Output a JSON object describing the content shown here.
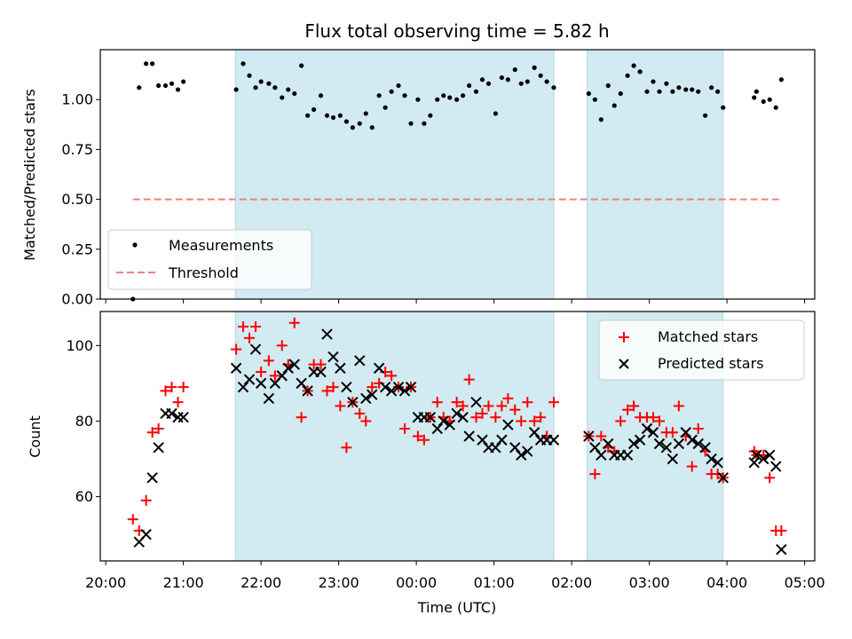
{
  "chart_data": {
    "title": "Flux total observing time = 5.82 h",
    "xlabel": "Time (UTC)",
    "x_ticks": [
      "20:00",
      "21:00",
      "22:00",
      "23:00",
      "00:00",
      "01:00",
      "02:00",
      "03:00",
      "04:00",
      "05:00"
    ],
    "x_range_hours": [
      19.93,
      29.13
    ],
    "shaded_spans_hours": [
      [
        21.67,
        25.77
      ],
      [
        26.2,
        27.95
      ]
    ],
    "shade_color": "#add8e6",
    "panels": [
      {
        "type": "scatter",
        "ylabel": "Matched/Predicted stars",
        "ylim": [
          0,
          1.25
        ],
        "yticks": [
          0,
          0.25,
          0.5,
          0.75,
          1.0
        ],
        "ytick_labels": [
          "0.00",
          "0.25",
          "0.50",
          "0.75",
          "1.00"
        ],
        "legend": "lower-left",
        "series": [
          {
            "name": "Measurements",
            "marker": "dot",
            "color": "#000000",
            "x": [
              20.35,
              20.43,
              20.52,
              20.6,
              20.68,
              20.77,
              20.85,
              20.93,
              21.0,
              21.68,
              21.77,
              21.85,
              21.93,
              22.0,
              22.1,
              22.18,
              22.27,
              22.35,
              22.43,
              22.52,
              22.6,
              22.68,
              22.77,
              22.85,
              22.93,
              23.02,
              23.1,
              23.18,
              23.27,
              23.35,
              23.43,
              23.52,
              23.6,
              23.68,
              23.77,
              23.85,
              23.93,
              24.02,
              24.1,
              24.18,
              24.27,
              24.35,
              24.43,
              24.52,
              24.6,
              24.68,
              24.77,
              24.85,
              24.93,
              25.02,
              25.1,
              25.18,
              25.27,
              25.35,
              25.43,
              25.52,
              25.6,
              25.68,
              25.77,
              26.22,
              26.3,
              26.38,
              26.47,
              26.55,
              26.63,
              26.72,
              26.8,
              26.88,
              26.97,
              27.05,
              27.13,
              27.22,
              27.3,
              27.38,
              27.47,
              27.55,
              27.63,
              27.72,
              27.8,
              27.88,
              27.95,
              28.35,
              28.38,
              28.47,
              28.55,
              28.63,
              28.7
            ],
            "y": [
              0.0,
              1.06,
              1.18,
              1.18,
              1.07,
              1.07,
              1.08,
              1.05,
              1.09,
              1.05,
              1.18,
              1.12,
              1.06,
              1.09,
              1.08,
              1.06,
              1.01,
              1.05,
              1.03,
              1.17,
              0.92,
              0.95,
              1.02,
              0.92,
              0.91,
              0.92,
              0.89,
              0.86,
              0.88,
              0.93,
              0.86,
              1.02,
              0.96,
              1.04,
              1.07,
              1.02,
              0.88,
              1.0,
              0.88,
              0.92,
              1.0,
              1.02,
              1.01,
              1.0,
              1.02,
              1.07,
              1.04,
              1.1,
              1.08,
              0.93,
              1.11,
              1.1,
              1.15,
              1.08,
              1.09,
              1.16,
              1.12,
              1.09,
              1.06,
              1.03,
              1.0,
              0.9,
              1.07,
              0.97,
              1.03,
              1.12,
              1.17,
              1.14,
              1.04,
              1.09,
              1.04,
              1.08,
              1.04,
              1.06,
              1.05,
              1.05,
              1.04,
              0.92,
              1.06,
              1.04,
              0.96,
              1.01,
              1.04,
              0.99,
              1.0,
              0.96,
              1.1
            ]
          },
          {
            "name": "Threshold",
            "marker": "dashed-line",
            "color": "#f08080",
            "x": [
              20.35,
              28.7
            ],
            "y": [
              0.5,
              0.5
            ]
          }
        ]
      },
      {
        "type": "scatter",
        "ylabel": "Count",
        "ylim": [
          43,
          109
        ],
        "yticks": [
          60,
          80,
          100
        ],
        "ytick_labels": [
          "60",
          "80",
          "100"
        ],
        "legend": "top-right",
        "series": [
          {
            "name": "Matched stars",
            "marker": "plus",
            "color": "#ff0000",
            "x": [
              20.35,
              20.43,
              20.52,
              20.6,
              20.68,
              20.77,
              20.85,
              20.93,
              21.0,
              21.68,
              21.77,
              21.85,
              21.93,
              22.0,
              22.1,
              22.18,
              22.27,
              22.35,
              22.43,
              22.52,
              22.6,
              22.68,
              22.77,
              22.85,
              22.93,
              23.02,
              23.1,
              23.18,
              23.27,
              23.35,
              23.43,
              23.52,
              23.6,
              23.68,
              23.77,
              23.85,
              23.93,
              24.02,
              24.1,
              24.18,
              24.27,
              24.35,
              24.43,
              24.52,
              24.6,
              24.68,
              24.77,
              24.85,
              24.93,
              25.02,
              25.1,
              25.18,
              25.27,
              25.35,
              25.43,
              25.52,
              25.6,
              25.68,
              25.77,
              26.22,
              26.3,
              26.38,
              26.47,
              26.55,
              26.63,
              26.72,
              26.8,
              26.88,
              26.97,
              27.05,
              27.13,
              27.22,
              27.3,
              27.38,
              27.47,
              27.55,
              27.63,
              27.72,
              27.8,
              27.88,
              27.95,
              28.35,
              28.38,
              28.47,
              28.55,
              28.63,
              28.7
            ],
            "y": [
              54,
              51,
              59,
              77,
              78,
              88,
              89,
              85,
              89,
              99,
              105,
              102,
              105,
              93,
              96,
              92,
              100,
              95,
              106,
              81,
              88,
              95,
              95,
              88,
              89,
              84,
              73,
              85,
              82,
              80,
              89,
              90,
              93,
              92,
              89,
              78,
              89,
              76,
              75,
              81,
              85,
              81,
              80,
              85,
              84,
              91,
              81,
              82,
              84,
              81,
              84,
              86,
              83,
              80,
              85,
              80,
              81,
              76,
              85,
              76,
              66,
              76,
              73,
              72,
              80,
              83,
              84,
              81,
              81,
              81,
              80,
              77,
              77,
              84,
              76,
              68,
              78,
              72,
              66,
              66,
              65,
              72,
              71,
              71,
              65,
              51,
              51
            ]
          },
          {
            "name": "Predicted stars",
            "marker": "x",
            "color": "#000000",
            "x": [
              20.43,
              20.52,
              20.6,
              20.68,
              20.77,
              20.85,
              20.93,
              21.0,
              21.68,
              21.77,
              21.85,
              21.93,
              22.0,
              22.1,
              22.18,
              22.27,
              22.35,
              22.43,
              22.52,
              22.6,
              22.68,
              22.77,
              22.85,
              22.93,
              23.02,
              23.1,
              23.18,
              23.27,
              23.35,
              23.43,
              23.52,
              23.6,
              23.68,
              23.77,
              23.85,
              23.93,
              24.02,
              24.1,
              24.18,
              24.27,
              24.35,
              24.43,
              24.52,
              24.6,
              24.68,
              24.77,
              24.85,
              24.93,
              25.02,
              25.1,
              25.18,
              25.27,
              25.35,
              25.43,
              25.52,
              25.6,
              25.68,
              25.77,
              26.22,
              26.3,
              26.38,
              26.47,
              26.55,
              26.63,
              26.72,
              26.8,
              26.88,
              26.97,
              27.05,
              27.13,
              27.22,
              27.3,
              27.38,
              27.47,
              27.55,
              27.63,
              27.72,
              27.8,
              27.88,
              27.95,
              28.35,
              28.38,
              28.47,
              28.55,
              28.63,
              28.7
            ],
            "y": [
              48,
              50,
              65,
              73,
              82,
              82,
              81,
              81,
              94,
              89,
              91,
              99,
              90,
              86,
              90,
              92,
              94,
              95,
              90,
              88,
              93,
              93,
              103,
              97,
              94,
              89,
              85,
              96,
              86,
              87,
              94,
              89,
              88,
              89,
              88,
              89,
              81,
              81,
              81,
              78,
              80,
              79,
              82,
              81,
              76,
              85,
              75,
              73,
              73,
              75,
              79,
              73,
              71,
              72,
              77,
              75,
              75,
              75,
              76,
              73,
              71,
              74,
              71,
              71,
              71,
              74,
              75,
              78,
              77,
              74,
              73,
              70,
              74,
              77,
              75,
              74,
              73,
              70,
              69,
              65,
              69,
              71,
              70,
              71,
              68,
              46
            ]
          }
        ]
      }
    ]
  }
}
